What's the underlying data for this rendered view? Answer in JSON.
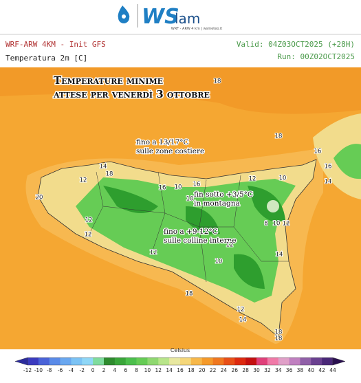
{
  "header": {
    "logo_ws": "WS",
    "logo_lam": "lam",
    "logo_tagline": "WRF - ARW 4 km | wsmeteo.it",
    "model": "WRF-ARW 4KM - Init GFS",
    "variable": "Temperatura 2m [C]",
    "valid": "Valid: 04Z03OCT2025 (+28H)",
    "run": "Run: 00Z02OCT2025"
  },
  "map": {
    "title_line1": "Temperature minime",
    "title_line2": "attese per venerdì 3 ottobre",
    "annotations": [
      "fino a 13/17°C\nsulle zone costiere",
      "fin sotto +3/5°C\nin montagna",
      "fino a  +9-12°C\nsulle colline interne"
    ],
    "labels": [
      "18",
      "18",
      "16",
      "14",
      "18",
      "12",
      "16",
      "10",
      "16",
      "12",
      "10",
      "16",
      "14",
      "20",
      "12",
      "12",
      "8",
      "10",
      "12",
      "10",
      "12",
      "12",
      "10",
      "14",
      "18",
      "12",
      "14",
      "18",
      "18"
    ]
  },
  "colorbar": {
    "unit": "Celsius",
    "ticks": [
      -12,
      -10,
      -8,
      -6,
      -4,
      -2,
      0,
      2,
      4,
      6,
      8,
      10,
      12,
      14,
      16,
      18,
      20,
      22,
      24,
      26,
      28,
      30,
      32,
      34,
      36,
      38,
      40,
      42,
      44
    ],
    "colors": [
      "#2c2c9c",
      "#3b3bbf",
      "#4a63d8",
      "#5a8be8",
      "#6aa8f0",
      "#7cc3f5",
      "#8fd7f7",
      "#7fdc9e",
      "#2e8b2e",
      "#3aa63a",
      "#4cbf4c",
      "#66cc55",
      "#8fd870",
      "#b8e58a",
      "#e8e8a0",
      "#f5d77a",
      "#f7b84a",
      "#f59a2a",
      "#f07820",
      "#e85018",
      "#dd2a10",
      "#c41010",
      "#e0407a",
      "#f07aa8",
      "#e0a0c8",
      "#c080c0",
      "#9060a8",
      "#6a4090",
      "#4a2878",
      "#2a1050"
    ]
  }
}
